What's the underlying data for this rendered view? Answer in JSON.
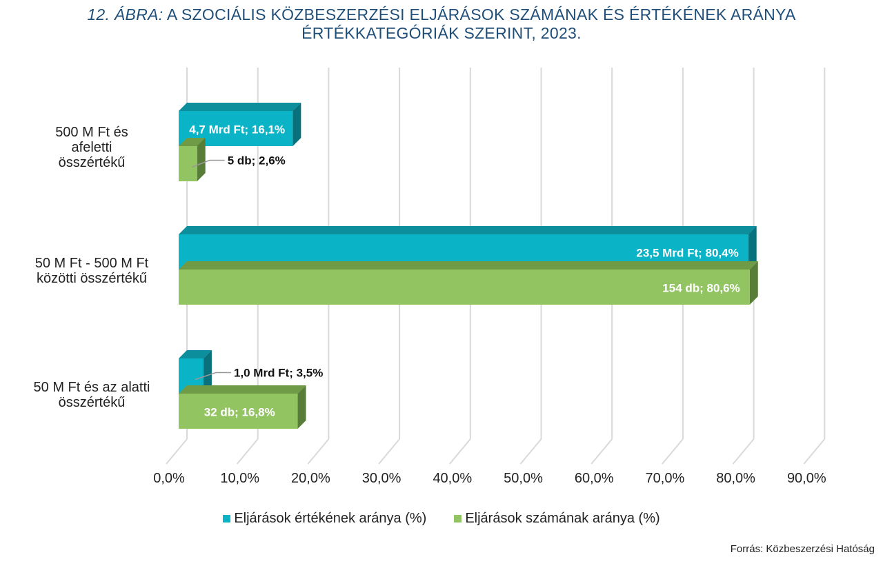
{
  "title": {
    "prefix": "12. ÁBRA:",
    "line1": "A SZOCIÁLIS KÖZBESZERZÉSI ELJÁRÁSOK SZÁMÁNAK ÉS ÉRTÉKÉNEK ARÁNYA",
    "line2": "ÉRTÉKKATEGÓRIÁK SZERINT, 2023."
  },
  "colors": {
    "value_front": "#0bb3c7",
    "value_top": "#0d8e9c",
    "value_side": "#08717c",
    "count_front": "#93c462",
    "count_top": "#6f9a46",
    "count_side": "#587d38",
    "grid": "#d9d9d9",
    "title": "#1f4e79"
  },
  "chart_data": {
    "type": "bar",
    "orientation": "horizontal",
    "style": "3d",
    "categories": [
      [
        "500 M Ft és",
        "afeletti",
        "összértékű"
      ],
      [
        "50 M Ft - 500 M Ft",
        "közötti összértékű"
      ],
      [
        "50 M Ft és az alatti",
        "összértékű"
      ]
    ],
    "series": [
      {
        "name": "Eljárások értékének aránya (%)",
        "values": [
          16.1,
          80.4,
          3.5
        ],
        "labels": [
          "4,7 Mrd Ft; 16,1%",
          "23,5 Mrd Ft; 80,4%",
          "1,0 Mrd Ft; 3,5%"
        ]
      },
      {
        "name": "Eljárások számának aránya (%)",
        "values": [
          2.6,
          80.6,
          16.8
        ],
        "labels": [
          "5 db; 2,6%",
          "154 db; 80,6%",
          "32 db; 16,8%"
        ]
      }
    ],
    "x_ticks": [
      "0,0%",
      "10,0%",
      "20,0%",
      "30,0%",
      "40,0%",
      "50,0%",
      "60,0%",
      "70,0%",
      "80,0%",
      "90,0%"
    ],
    "xlim": [
      0,
      90
    ],
    "grid": true,
    "legend_position": "bottom"
  },
  "source": "Forrás: Közbeszerzési Hatóság"
}
